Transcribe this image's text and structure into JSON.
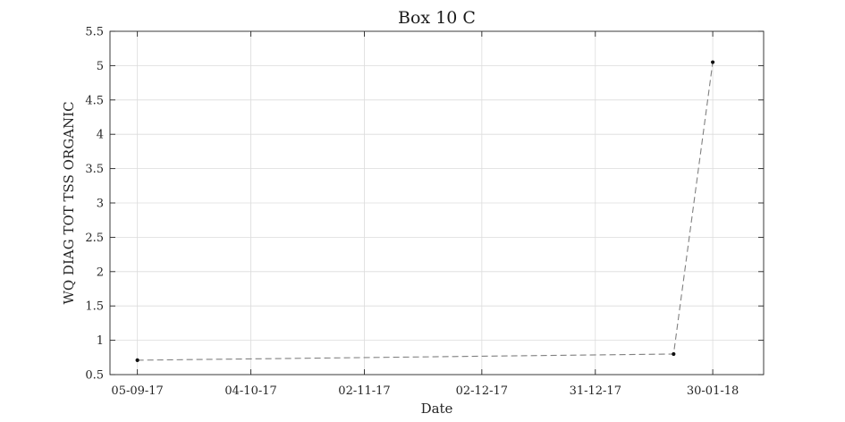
{
  "chart_data": {
    "type": "line",
    "title": "Box 10 C",
    "xlabel": "Date",
    "ylabel": "WQ DIAG TOT TSS ORGANIC",
    "x_ticks": [
      "05-09-17",
      "04-10-17",
      "02-11-17",
      "02-12-17",
      "31-12-17",
      "30-01-18"
    ],
    "x_tick_dates": [
      "2017-09-05",
      "2017-10-04",
      "2017-11-02",
      "2017-12-02",
      "2017-12-31",
      "2018-01-30"
    ],
    "xlim": [
      "2017-08-29",
      "2018-02-12"
    ],
    "y_ticks": [
      0.5,
      1,
      1.5,
      2,
      2.5,
      3,
      3.5,
      4,
      4.5,
      5,
      5.5
    ],
    "ylim": [
      0.5,
      5.5
    ],
    "grid": true,
    "series": [
      {
        "x": [
          "2017-09-05",
          "2018-01-20",
          "2018-01-30"
        ],
        "values": [
          0.71,
          0.8,
          5.05
        ],
        "color": "#808080",
        "marker_color": "#111111",
        "line_style": "dashed"
      }
    ]
  }
}
